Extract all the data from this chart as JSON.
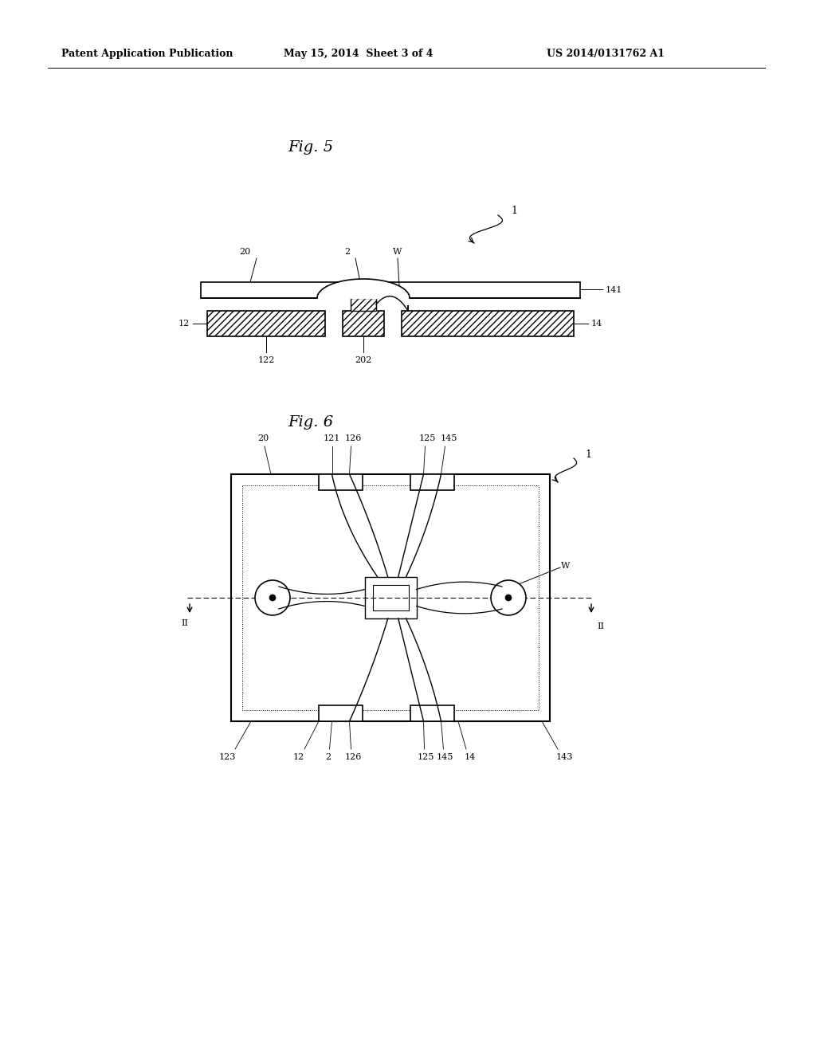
{
  "bg_color": "#ffffff",
  "line_color": "#000000",
  "header_left": "Patent Application Publication",
  "header_mid": "May 15, 2014  Sheet 3 of 4",
  "header_right": "US 2014/0131762 A1",
  "fig5_label": "Fig. 5",
  "fig6_label": "Fig. 6"
}
